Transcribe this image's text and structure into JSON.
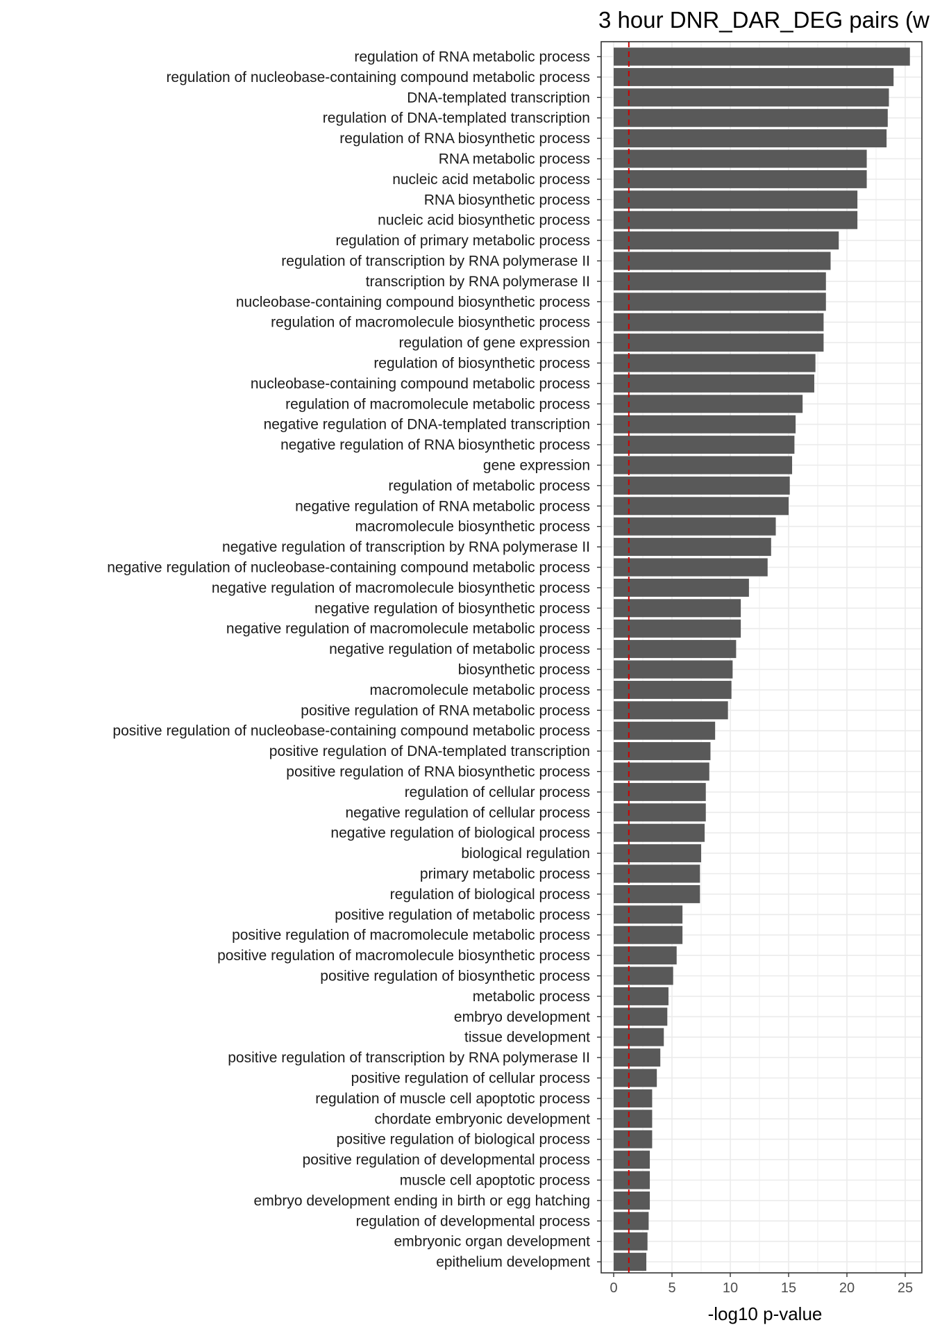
{
  "chart_data": {
    "type": "bar",
    "orientation": "horizontal",
    "title": "3 hour DNR_DAR_DEG pairs (w",
    "xlabel": "-log10 p-value",
    "ylabel": "",
    "xlim": [
      0,
      26.5
    ],
    "xticks": [
      0,
      5,
      10,
      15,
      20,
      25
    ],
    "grid": true,
    "threshold_line": {
      "value": 1.3,
      "color": "#cc0000",
      "style": "dashed"
    },
    "bar_color": "#595959",
    "categories": [
      "regulation of RNA metabolic process",
      "regulation of nucleobase-containing compound metabolic process",
      "DNA-templated transcription",
      "regulation of DNA-templated transcription",
      "regulation of RNA biosynthetic process",
      "RNA metabolic process",
      "nucleic acid metabolic process",
      "RNA biosynthetic process",
      "nucleic acid biosynthetic process",
      "regulation of primary metabolic process",
      "regulation of transcription by RNA polymerase II",
      "transcription by RNA polymerase II",
      "nucleobase-containing compound biosynthetic process",
      "regulation of macromolecule biosynthetic process",
      "regulation of gene expression",
      "regulation of biosynthetic process",
      "nucleobase-containing compound metabolic process",
      "regulation of macromolecule metabolic process",
      "negative regulation of DNA-templated transcription",
      "negative regulation of RNA biosynthetic process",
      "gene expression",
      "regulation of metabolic process",
      "negative regulation of RNA metabolic process",
      "macromolecule biosynthetic process",
      "negative regulation of transcription by RNA polymerase II",
      "negative regulation of nucleobase-containing compound metabolic process",
      "negative regulation of macromolecule biosynthetic process",
      "negative regulation of biosynthetic process",
      "negative regulation of macromolecule metabolic process",
      "negative regulation of metabolic process",
      "biosynthetic process",
      "macromolecule metabolic process",
      "positive regulation of RNA metabolic process",
      "positive regulation of nucleobase-containing compound metabolic process",
      "positive regulation of DNA-templated transcription",
      "positive regulation of RNA biosynthetic process",
      "regulation of cellular process",
      "negative regulation of cellular process",
      "negative regulation of biological process",
      "biological regulation",
      "primary metabolic process",
      "regulation of biological process",
      "positive regulation of metabolic process",
      "positive regulation of macromolecule metabolic process",
      "positive regulation of macromolecule biosynthetic process",
      "positive regulation of biosynthetic process",
      "metabolic process",
      "embryo development",
      "tissue development",
      "positive regulation of transcription by RNA polymerase II",
      "positive regulation of cellular process",
      "regulation of muscle cell apoptotic process",
      "chordate embryonic development",
      "positive regulation of biological process",
      "positive regulation of developmental process",
      "muscle cell apoptotic process",
      "embryo development ending in birth or egg hatching",
      "regulation of developmental process",
      "embryonic organ development",
      "epithelium development"
    ],
    "values": [
      25.4,
      24.0,
      23.6,
      23.5,
      23.4,
      21.7,
      21.7,
      20.9,
      20.9,
      19.3,
      18.6,
      18.2,
      18.2,
      18.0,
      18.0,
      17.3,
      17.2,
      16.2,
      15.6,
      15.5,
      15.3,
      15.1,
      15.0,
      13.9,
      13.5,
      13.2,
      11.6,
      10.9,
      10.9,
      10.5,
      10.2,
      10.1,
      9.8,
      8.7,
      8.3,
      8.2,
      7.9,
      7.9,
      7.8,
      7.5,
      7.4,
      7.4,
      5.9,
      5.9,
      5.4,
      5.1,
      4.7,
      4.6,
      4.3,
      4.0,
      3.7,
      3.3,
      3.3,
      3.3,
      3.1,
      3.1,
      3.1,
      3.0,
      2.9,
      2.8
    ]
  }
}
